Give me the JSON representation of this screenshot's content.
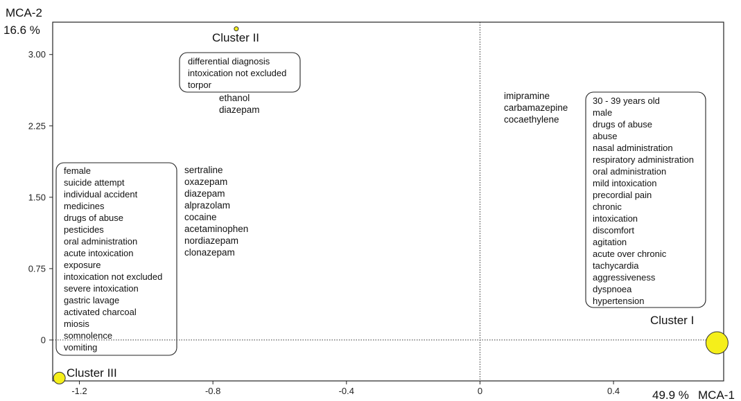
{
  "chart_data": {
    "type": "scatter",
    "title": "",
    "xlabel": "MCA-1",
    "ylabel": "MCA-2",
    "x_variance": "49.9 %",
    "y_variance": "16.6 %",
    "xlim": [
      -1.28,
      0.73
    ],
    "ylim": [
      -0.43,
      3.34
    ],
    "xticks": [
      -1.2,
      -0.8,
      -0.4,
      0,
      0.4
    ],
    "xtick_labels": [
      "-1.2",
      "-0.8",
      "-0.4",
      "0",
      "0.4"
    ],
    "yticks": [
      0,
      0.75,
      1.5,
      2.25,
      3.0
    ],
    "ytick_labels": [
      "0",
      "0.75",
      "1.50",
      "2.25",
      "3.00"
    ],
    "grid": false,
    "reference_lines": [
      "x = 0 (dotted)",
      "y = 0 (dotted)"
    ],
    "marker_color": "#f5ef1a",
    "clusters": [
      {
        "name": "Cluster I",
        "x": 0.71,
        "y": -0.03,
        "size": "large"
      },
      {
        "name": "Cluster II",
        "x": -0.73,
        "y": 3.27,
        "size": "small"
      },
      {
        "name": "Cluster III",
        "x": -1.26,
        "y": -0.4,
        "size": "medium"
      }
    ],
    "annotations": [
      {
        "id": "cluster-2-box",
        "boxed": true,
        "items": [
          "differential diagnosis",
          "intoxication not excluded",
          "torpor"
        ]
      },
      {
        "id": "cluster-2-substances",
        "boxed": false,
        "items": [
          "ethanol",
          "diazepam"
        ]
      },
      {
        "id": "cluster-3-box",
        "boxed": true,
        "items": [
          "female",
          "suicide attempt",
          "individual accident",
          "medicines",
          "drugs of abuse",
          "pesticides",
          "oral administration",
          "acute intoxication",
          "exposure",
          "intoxication not excluded",
          "severe intoxication",
          "gastric lavage",
          "activated charcoal",
          "miosis",
          "somnolence",
          "vomiting"
        ]
      },
      {
        "id": "cluster-3-substances",
        "boxed": false,
        "items": [
          "sertraline",
          "oxazepam",
          "diazepam",
          "alprazolam",
          "cocaine",
          "acetaminophen",
          "nordiazepam",
          "clonazepam"
        ]
      },
      {
        "id": "cluster-1-substances",
        "boxed": false,
        "items": [
          "imipramine",
          "carbamazepine",
          "cocaethylene"
        ]
      },
      {
        "id": "cluster-1-box",
        "boxed": true,
        "items": [
          "30 - 39 years old",
          "male",
          "drugs of abuse",
          "abuse",
          "nasal administration",
          "respiratory administration",
          "oral administration",
          "mild intoxication",
          "precordial pain",
          "chronic",
          "intoxication",
          "discomfort",
          "agitation",
          "acute over chronic",
          "tachycardia",
          "aggressiveness",
          "dyspnoea",
          "hypertension"
        ]
      }
    ]
  }
}
